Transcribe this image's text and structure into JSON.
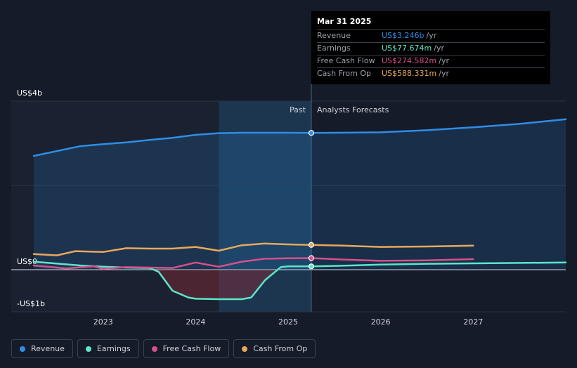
{
  "chart_data": {
    "type": "line",
    "y_tick_labels": [
      "US$4b",
      "US$0",
      "-US$1b"
    ],
    "ylim": [
      -1.0,
      4.0
    ],
    "xlim": [
      2022.25,
      2028.0
    ],
    "x_ticks": [
      2023,
      2024,
      2025,
      2026,
      2027
    ],
    "x_tick_labels": [
      "2023",
      "2024",
      "2025",
      "2026",
      "2027"
    ],
    "divider_x": 2025.25,
    "highlight_range": [
      2024.25,
      2025.25
    ],
    "past_label": "Past",
    "forecast_label": "Analysts Forecasts",
    "series": [
      {
        "name": "Revenue",
        "key": "revenue",
        "color": "#2f8de4",
        "fill": true,
        "x": [
          2022.25,
          2022.75,
          2023.0,
          2023.25,
          2023.5,
          2023.75,
          2024.0,
          2024.25,
          2024.5,
          2024.75,
          2025.0,
          2025.25,
          2025.5,
          2026.0,
          2026.5,
          2027.0,
          2027.5,
          2028.0
        ],
        "values": [
          2.7,
          2.93,
          2.98,
          3.02,
          3.08,
          3.13,
          3.2,
          3.24,
          3.25,
          3.25,
          3.25,
          3.246,
          3.25,
          3.26,
          3.31,
          3.38,
          3.46,
          3.57
        ]
      },
      {
        "name": "Earnings",
        "key": "earnings",
        "color": "#5ee5c8",
        "fill": false,
        "x": [
          2022.25,
          2022.75,
          2023.0,
          2023.25,
          2023.5,
          2023.6,
          2023.75,
          2023.92,
          2024.0,
          2024.25,
          2024.5,
          2024.6,
          2024.75,
          2024.92,
          2025.0,
          2025.25,
          2025.5,
          2026.0,
          2026.5,
          2027.0,
          2027.5,
          2028.0
        ],
        "values": [
          0.19,
          0.1,
          0.07,
          0.05,
          0.04,
          -0.05,
          -0.5,
          -0.66,
          -0.69,
          -0.7,
          -0.7,
          -0.66,
          -0.25,
          0.06,
          0.08,
          0.078,
          0.09,
          0.12,
          0.14,
          0.15,
          0.16,
          0.17
        ]
      },
      {
        "name": "Free Cash Flow",
        "key": "fcf",
        "color": "#d6508a",
        "fill": false,
        "x": [
          2022.25,
          2022.6,
          2022.9,
          2023.0,
          2023.25,
          2023.5,
          2023.75,
          2024.0,
          2024.25,
          2024.5,
          2024.75,
          2025.0,
          2025.25,
          2025.6,
          2026.0,
          2026.5,
          2027.0
        ],
        "values": [
          0.1,
          0.03,
          0.08,
          0.02,
          0.06,
          0.05,
          0.04,
          0.17,
          0.07,
          0.19,
          0.26,
          0.27,
          0.275,
          0.24,
          0.21,
          0.22,
          0.25
        ]
      },
      {
        "name": "Cash From Op",
        "key": "cfo",
        "color": "#e8a85c",
        "fill": false,
        "x": [
          2022.25,
          2022.5,
          2022.7,
          2023.0,
          2023.25,
          2023.5,
          2023.75,
          2024.0,
          2024.25,
          2024.5,
          2024.75,
          2025.0,
          2025.25,
          2025.6,
          2026.0,
          2026.5,
          2027.0
        ],
        "values": [
          0.37,
          0.34,
          0.44,
          0.42,
          0.51,
          0.5,
          0.5,
          0.54,
          0.45,
          0.58,
          0.62,
          0.6,
          0.588,
          0.57,
          0.54,
          0.55,
          0.57
        ]
      }
    ]
  },
  "tooltip": {
    "date": "Mar 31 2025",
    "rows": [
      {
        "name": "Revenue",
        "value": "US$3.246b",
        "unit": "/yr",
        "color": "#2f8de4"
      },
      {
        "name": "Earnings",
        "value": "US$77.674m",
        "unit": "/yr",
        "color": "#5ee5c8"
      },
      {
        "name": "Free Cash Flow",
        "value": "US$274.582m",
        "unit": "/yr",
        "color": "#d6508a"
      },
      {
        "name": "Cash From Op",
        "value": "US$588.331m",
        "unit": "/yr",
        "color": "#e8a85c"
      }
    ]
  },
  "legend": [
    {
      "label": "Revenue",
      "color": "#2f8de4"
    },
    {
      "label": "Earnings",
      "color": "#5ee5c8"
    },
    {
      "label": "Free Cash Flow",
      "color": "#d6508a"
    },
    {
      "label": "Cash From Op",
      "color": "#e8a85c"
    }
  ]
}
